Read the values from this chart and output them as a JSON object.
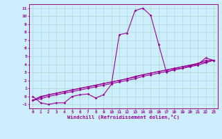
{
  "x": [
    0,
    1,
    2,
    3,
    4,
    5,
    6,
    7,
    8,
    9,
    10,
    11,
    12,
    13,
    14,
    15,
    16,
    17,
    18,
    19,
    20,
    21,
    22,
    23
  ],
  "line1": [
    0,
    -0.8,
    -1,
    -0.8,
    -0.8,
    0,
    0.2,
    0.3,
    -0.2,
    0.2,
    1.5,
    7.7,
    7.9,
    10.7,
    11.0,
    10.1,
    6.5,
    3.0,
    3.4,
    3.5,
    3.8,
    4.0,
    4.8,
    4.5
  ],
  "line2": [
    -0.5,
    0.0,
    0.2,
    0.4,
    0.6,
    0.8,
    1.0,
    1.2,
    1.4,
    1.6,
    1.8,
    2.0,
    2.2,
    2.5,
    2.7,
    2.9,
    3.1,
    3.3,
    3.5,
    3.7,
    3.9,
    4.1,
    4.5,
    4.5
  ],
  "line3": [
    -0.5,
    -0.1,
    0.2,
    0.4,
    0.6,
    0.8,
    1.0,
    1.2,
    1.4,
    1.6,
    1.8,
    2.0,
    2.2,
    2.4,
    2.7,
    2.9,
    3.1,
    3.3,
    3.5,
    3.7,
    3.9,
    4.1,
    4.3,
    4.5
  ],
  "line4": [
    -0.5,
    -0.3,
    0.0,
    0.2,
    0.4,
    0.6,
    0.8,
    1.0,
    1.2,
    1.4,
    1.6,
    1.8,
    2.0,
    2.2,
    2.5,
    2.7,
    2.9,
    3.1,
    3.3,
    3.5,
    3.7,
    3.9,
    4.2,
    4.5
  ],
  "color": "#990099",
  "bg_color": "#cceeff",
  "grid_color": "#b0d8cc",
  "xlabel": "Windchill (Refroidissement éolien,°C)",
  "xlim": [
    -0.5,
    23.5
  ],
  "ylim": [
    -1.5,
    11.5
  ],
  "xticks": [
    0,
    1,
    2,
    3,
    4,
    5,
    6,
    7,
    8,
    9,
    10,
    11,
    12,
    13,
    14,
    15,
    16,
    17,
    18,
    19,
    20,
    21,
    22,
    23
  ],
  "yticks": [
    -1,
    0,
    1,
    2,
    3,
    4,
    5,
    6,
    7,
    8,
    9,
    10,
    11
  ]
}
